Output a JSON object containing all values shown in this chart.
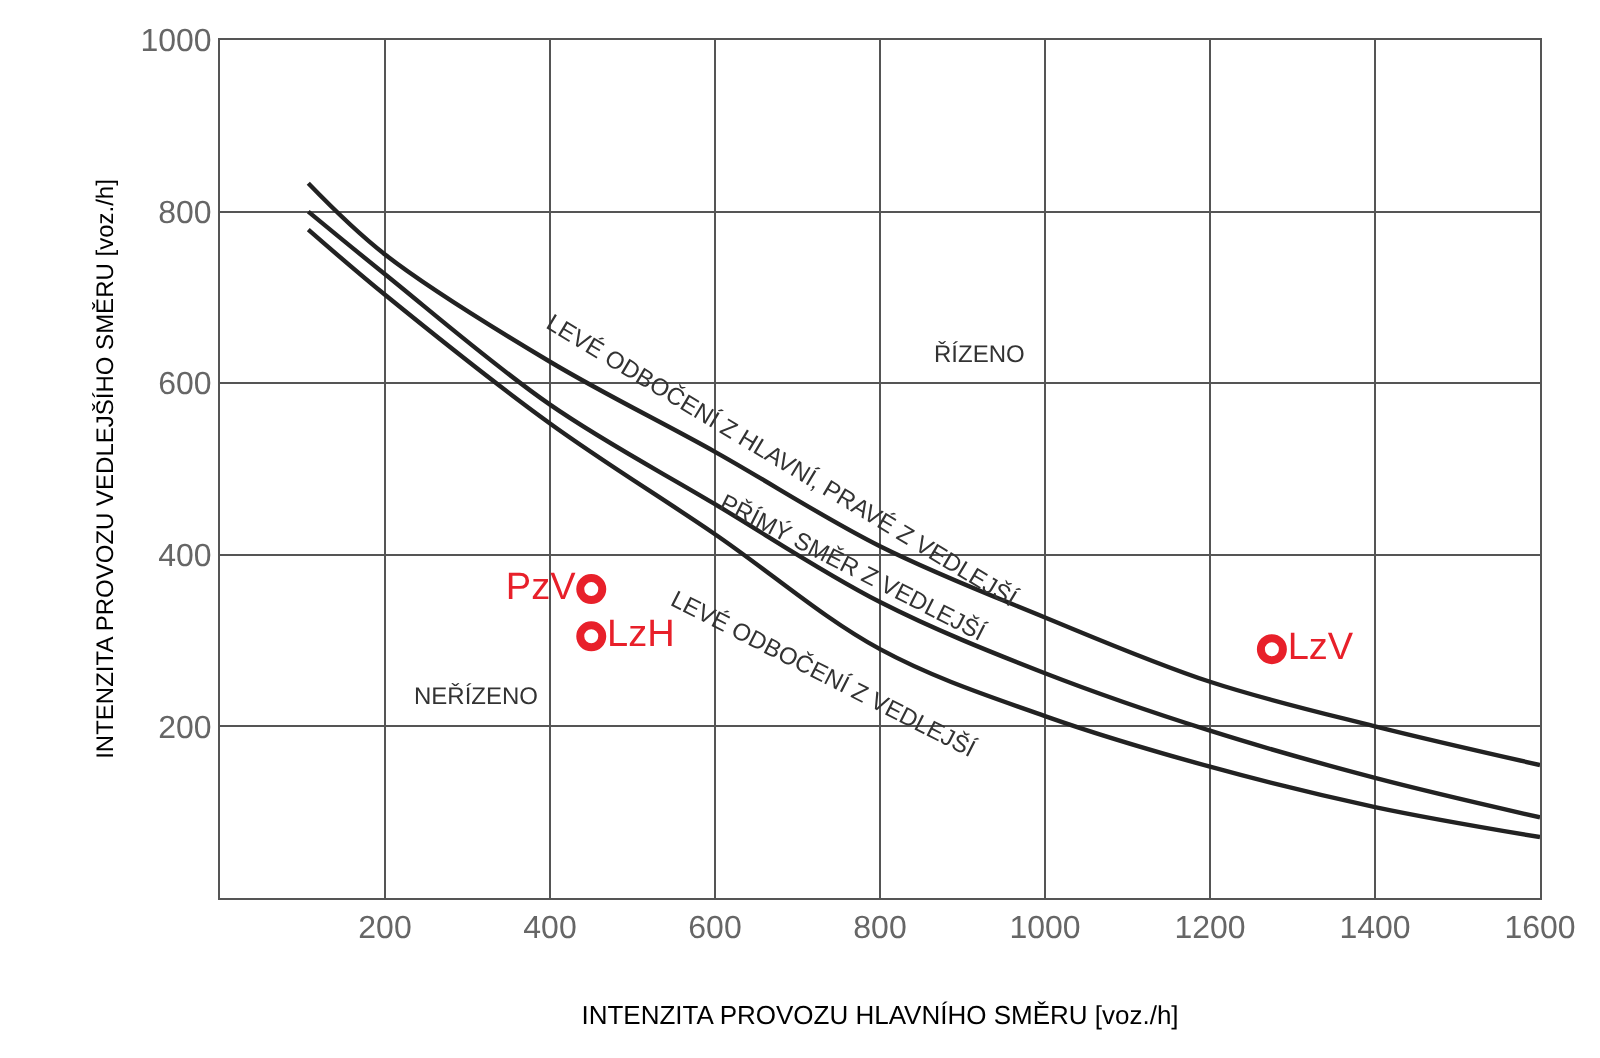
{
  "chart_data": {
    "type": "line",
    "xlabel": "INTENZITA PROVOZU HLAVNÍHO SMĚRU [voz./h]",
    "ylabel": "INTENZITA PROVOZU VEDLEJŠÍHO SMĚRU [voz./h]",
    "xlim": [
      0,
      1600
    ],
    "ylim": [
      0,
      1000
    ],
    "xticks": [
      200,
      400,
      600,
      800,
      1000,
      1200,
      1400,
      1600
    ],
    "yticks": [
      200,
      400,
      600,
      800,
      1000
    ],
    "grid": true,
    "series": [
      {
        "color": "#222222",
        "marker": "none",
        "x": [
          107,
          200,
          400,
          600,
          800,
          1000,
          1200,
          1400,
          1600
        ],
        "values": [
          833,
          750,
          625,
          520,
          410,
          327,
          252,
          200,
          155
        ]
      },
      {
        "color": "#222222",
        "marker": "none",
        "x": [
          107,
          200,
          400,
          600,
          800,
          1000,
          1200,
          1400,
          1600
        ],
        "values": [
          800,
          727,
          575,
          459,
          345,
          262,
          195,
          140,
          94
        ]
      },
      {
        "color": "#222222",
        "marker": "none",
        "x": [
          107,
          200,
          400,
          600,
          800,
          1000,
          1200,
          1400,
          1600
        ],
        "values": [
          779,
          703,
          553,
          424,
          290,
          212,
          153,
          106,
          71
        ]
      },
      {
        "type": "scatter",
        "name": "PzV",
        "color": "#e8202a",
        "marker": "circle",
        "x": [
          450
        ],
        "values": [
          360
        ]
      },
      {
        "type": "scatter",
        "name": "LzH",
        "color": "#e8202a",
        "marker": "circle",
        "x": [
          450
        ],
        "values": [
          305
        ]
      },
      {
        "type": "scatter",
        "name": "LzV",
        "color": "#e8202a",
        "marker": "circle",
        "x": [
          1275
        ],
        "values": [
          290
        ]
      }
    ],
    "annotations": [
      "ŘÍZENO",
      "NEŘÍZENO",
      "LEVÉ ODBOČENÍ Z HLAVNÍ, PRAVÉ Z VEDLEJŠÍ",
      "PŘÍMÝ SMĚR Z VEDLEJŠÍ",
      "LEVÉ ODBOČENÍ Z VEDLEJŠÍ"
    ]
  }
}
